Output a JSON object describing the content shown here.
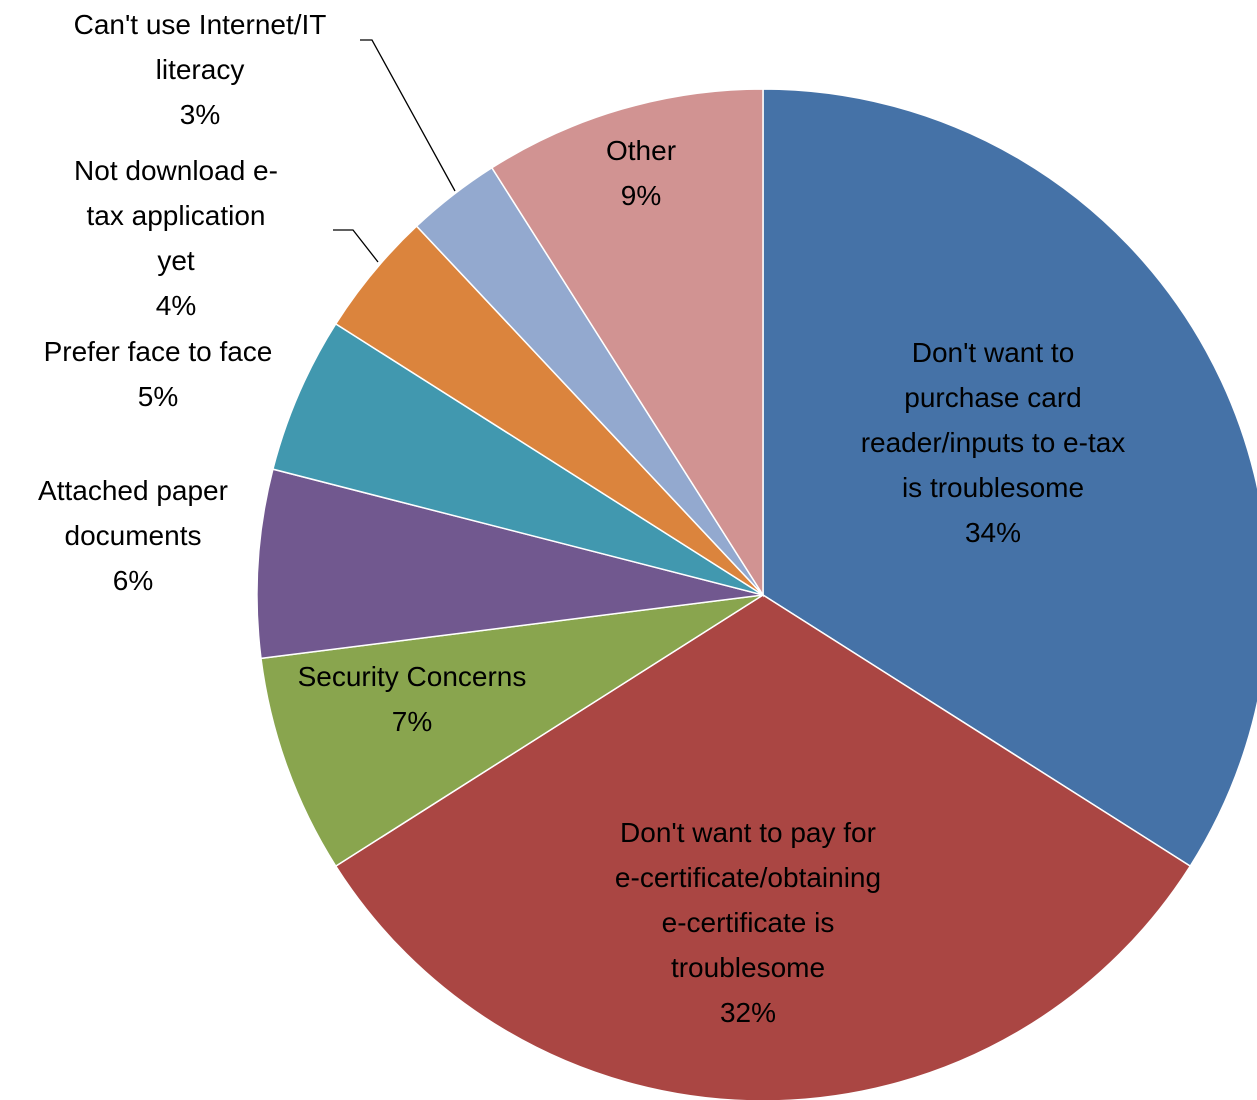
{
  "chart_data": {
    "type": "pie",
    "title": "",
    "start_angle_deg": 0,
    "direction": "clockwise",
    "legend": "none",
    "slices": [
      {
        "label": "Don't want to purchase card reader/inputs to e-tax is troublesome",
        "label_lines": [
          "Don't want to",
          "purchase card",
          "reader/inputs to e-tax",
          "is troublesome"
        ],
        "percent_text": "34%",
        "value": 34,
        "color": "#4572A7",
        "label_position": "inside"
      },
      {
        "label": "Don't want to pay for e-certificate/obtaining e-certificate is troublesome",
        "label_lines": [
          "Don't want to pay for",
          "e-certificate/obtaining",
          "e-certificate is",
          "troublesome"
        ],
        "percent_text": "32%",
        "value": 32,
        "color": "#AA4643",
        "label_position": "inside"
      },
      {
        "label": "Security Concerns",
        "label_lines": [
          "Security Concerns"
        ],
        "percent_text": "7%",
        "value": 7,
        "color": "#89A54E",
        "label_position": "inside"
      },
      {
        "label": "Attached paper documents",
        "label_lines": [
          "Attached paper",
          "documents"
        ],
        "percent_text": "6%",
        "value": 6,
        "color": "#71588F",
        "label_position": "outside"
      },
      {
        "label": "Prefer face to face",
        "label_lines": [
          "Prefer face to face"
        ],
        "percent_text": "5%",
        "value": 5,
        "color": "#4198AF",
        "label_position": "outside"
      },
      {
        "label": "Not download e-tax application yet",
        "label_lines": [
          "Not download e-",
          "tax application",
          "yet"
        ],
        "percent_text": "4%",
        "value": 4,
        "color": "#DB843D",
        "label_position": "outside-leader"
      },
      {
        "label": "Can't use Internet/IT literacy",
        "label_lines": [
          "Can't use Internet/IT",
          "literacy"
        ],
        "percent_text": "3%",
        "value": 3,
        "color": "#93A9CF",
        "label_position": "outside-leader"
      },
      {
        "label": "Other",
        "label_lines": [
          "Other"
        ],
        "percent_text": "9%",
        "value": 9,
        "color": "#D19392",
        "label_position": "inside"
      }
    ]
  }
}
